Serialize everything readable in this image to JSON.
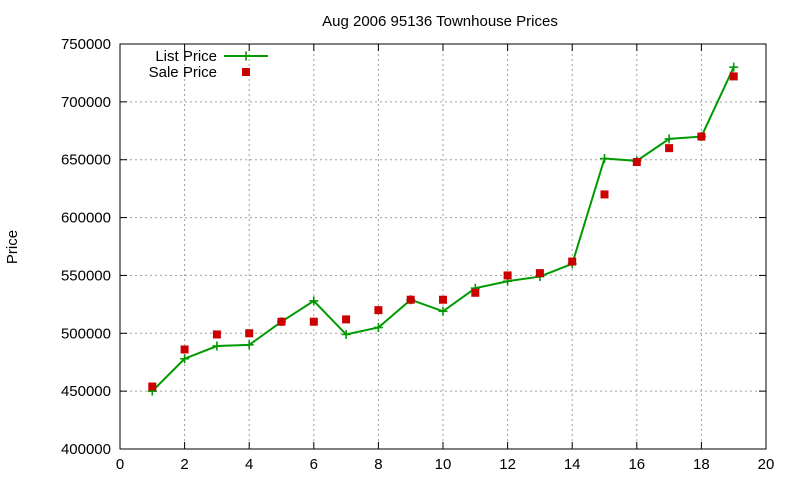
{
  "chart_data": {
    "type": "line",
    "title": "Aug 2006 95136 Townhouse Prices",
    "xlabel": "",
    "ylabel": "Price",
    "xlim": [
      0,
      20
    ],
    "ylim": [
      400000,
      750000
    ],
    "xticks": [
      0,
      2,
      4,
      6,
      8,
      10,
      12,
      14,
      16,
      18,
      20
    ],
    "yticks": [
      400000,
      450000,
      500000,
      550000,
      600000,
      650000,
      700000,
      750000
    ],
    "grid": true,
    "legend_position": "top-left",
    "series": [
      {
        "name": "List Price",
        "style": "lines+points",
        "marker": "plus",
        "color": "#009900",
        "x": [
          1,
          2,
          3,
          4,
          5,
          6,
          7,
          8,
          9,
          10,
          11,
          12,
          13,
          14,
          15,
          16,
          17,
          18,
          19
        ],
        "y": [
          450000,
          478000,
          489000,
          490000,
          510000,
          528000,
          499000,
          505000,
          529000,
          519000,
          539000,
          545000,
          549000,
          560000,
          651000,
          649000,
          668000,
          670000,
          730000
        ]
      },
      {
        "name": "Sale Price",
        "style": "points",
        "marker": "square",
        "color": "#cc0000",
        "x": [
          1,
          2,
          3,
          4,
          5,
          6,
          7,
          8,
          9,
          10,
          11,
          12,
          13,
          14,
          15,
          16,
          17,
          18,
          19
        ],
        "y": [
          454000,
          486000,
          499000,
          500000,
          510000,
          510000,
          512000,
          520000,
          529000,
          529000,
          535000,
          550000,
          552000,
          562000,
          620000,
          648000,
          660000,
          670000,
          722000
        ]
      }
    ]
  }
}
